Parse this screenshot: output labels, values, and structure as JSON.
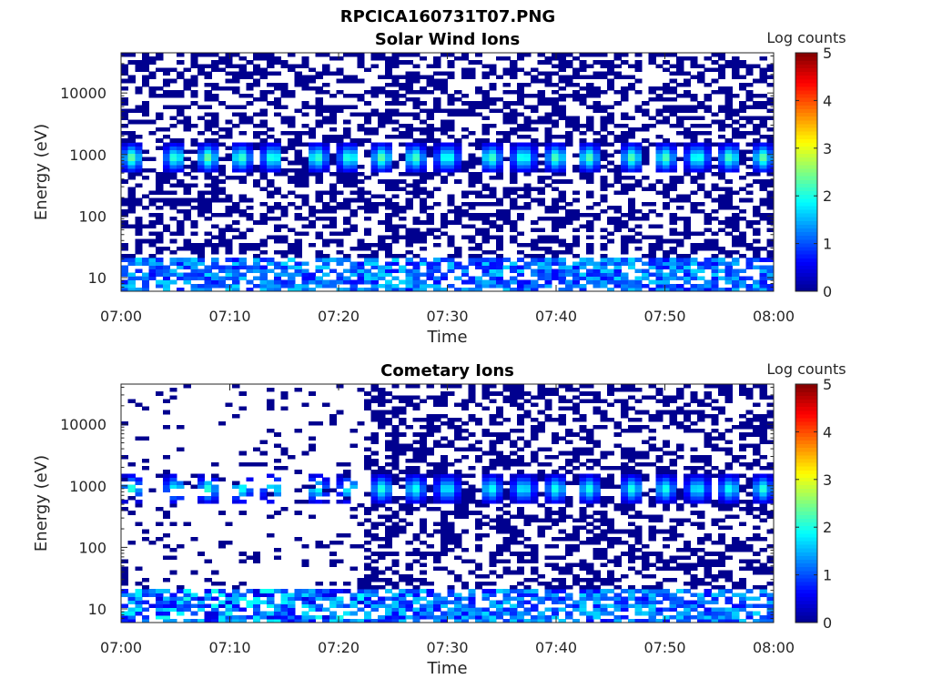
{
  "figure": {
    "title": "RPCICA160731T07.PNG"
  },
  "colormap": [
    "#00008f",
    "#0000ff",
    "#0080ff",
    "#00ffff",
    "#80ff80",
    "#ffff00",
    "#ff8000",
    "#ff0000",
    "#800000"
  ],
  "chart_data": [
    {
      "type": "heatmap",
      "title": "Solar Wind Ions",
      "xlabel": "Time",
      "ylabel": "Energy (eV)",
      "x_range": [
        "07:00",
        "08:00"
      ],
      "x_ticks": [
        "07:00",
        "07:10",
        "07:20",
        "07:30",
        "07:40",
        "07:50",
        "08:00"
      ],
      "y_scale": "log",
      "y_range": [
        6,
        45000
      ],
      "y_ticks": [
        10,
        100,
        1000,
        10000
      ],
      "y_tick_labels": [
        "10",
        "100",
        "1000",
        "10000"
      ],
      "colorbar": {
        "label": "Log counts",
        "range": [
          0,
          5
        ],
        "ticks": [
          "0",
          "1",
          "2",
          "3",
          "4",
          "5"
        ]
      },
      "time_bins": 94,
      "energy_bins": 64,
      "noise_floor_level": 0,
      "noise_floor_density": 0.45,
      "dense_start_fraction": 0.0,
      "low_energy_max_eV": 20,
      "peak_energy_eV": 900,
      "peak_times": [
        "07:01",
        "07:05",
        "07:08",
        "07:11",
        "07:14",
        "07:18",
        "07:21",
        "07:24",
        "07:27",
        "07:30",
        "07:34",
        "07:37",
        "07:40",
        "07:43",
        "07:47",
        "07:50",
        "07:53",
        "07:56",
        "07:59"
      ],
      "peak_max_log_counts": 2.6
    },
    {
      "type": "heatmap",
      "title": "Cometary Ions",
      "xlabel": "Time",
      "ylabel": "Energy (eV)",
      "x_range": [
        "07:00",
        "08:00"
      ],
      "x_ticks": [
        "07:00",
        "07:10",
        "07:20",
        "07:30",
        "07:40",
        "07:50",
        "08:00"
      ],
      "y_scale": "log",
      "y_range": [
        6,
        45000
      ],
      "y_ticks": [
        10,
        100,
        1000,
        10000
      ],
      "y_tick_labels": [
        "10",
        "100",
        "1000",
        "10000"
      ],
      "colorbar": {
        "label": "Log counts",
        "range": [
          0,
          5
        ],
        "ticks": [
          "0",
          "1",
          "2",
          "3",
          "4",
          "5"
        ]
      },
      "time_bins": 94,
      "energy_bins": 64,
      "noise_floor_level": 0,
      "noise_floor_density": 0.45,
      "dense_start_fraction": 0.37,
      "low_energy_max_eV": 20,
      "peak_energy_eV": 900,
      "peak_times": [
        "07:01",
        "07:05",
        "07:08",
        "07:11",
        "07:14",
        "07:18",
        "07:21",
        "07:24",
        "07:27",
        "07:30",
        "07:34",
        "07:37",
        "07:40",
        "07:43",
        "07:47",
        "07:50",
        "07:53",
        "07:56",
        "07:59"
      ],
      "peak_max_log_counts": 2.3
    }
  ]
}
